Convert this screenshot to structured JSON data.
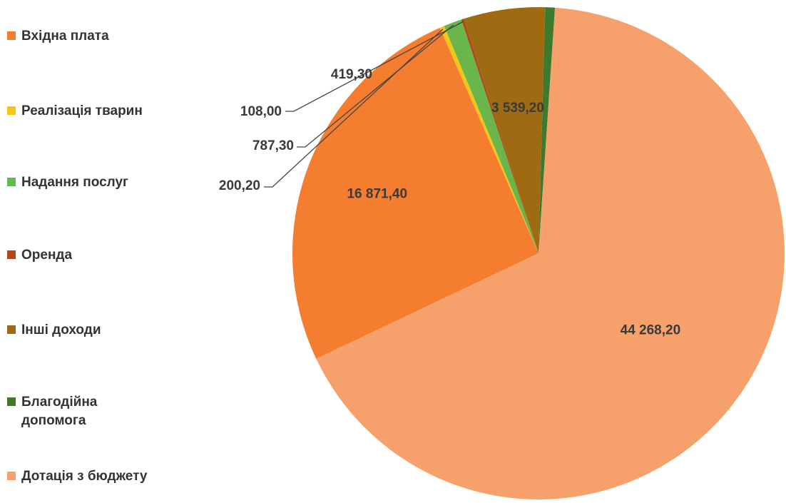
{
  "chart_data": {
    "type": "pie",
    "title": "",
    "series": [
      {
        "name": "Вхідна плата",
        "value": 16871.4,
        "label": "16 871,40",
        "color": "#F47D30"
      },
      {
        "name": "Реалізація тварин",
        "value": 200.2,
        "label": "200,20",
        "color": "#F5C518"
      },
      {
        "name": "Надання послуг",
        "value": 787.3,
        "label": "787,30",
        "color": "#6AB64A"
      },
      {
        "name": "Оренда",
        "value": 108.0,
        "label": "108,00",
        "color": "#B0481E"
      },
      {
        "name": "Інші доходи",
        "value": 3539.2,
        "label": "3 539,20",
        "color": "#9E6A12"
      },
      {
        "name": "Благодійна допомога",
        "value": 419.3,
        "label": "419,30",
        "color": "#3E7A2E"
      },
      {
        "name": "Дотація з бюджету",
        "value": 44268.2,
        "label": "44 268,20",
        "color": "#F6A06B"
      }
    ],
    "legend_position": "left"
  },
  "legend": {
    "items": [
      {
        "label": "Вхідна плата"
      },
      {
        "label": "Реалізація тварин"
      },
      {
        "label": "Надання послуг"
      },
      {
        "label": "Оренда"
      },
      {
        "label": "Інші доходи"
      },
      {
        "label": "Благодійна\nдопомога"
      },
      {
        "label": "Дотація з бюджету"
      }
    ]
  }
}
